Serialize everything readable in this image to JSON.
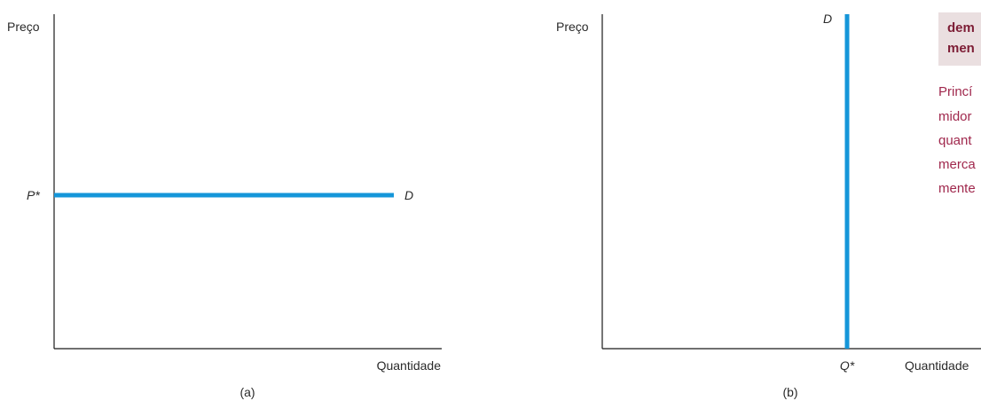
{
  "chart_data": [
    {
      "type": "line",
      "panel_label": "(a)",
      "ylabel": "Preço",
      "xlabel": "Quantidade",
      "tick_label_y": "P*",
      "series": [
        {
          "name": "D",
          "description": "perfectly elastic demand (horizontal line at P*)"
        }
      ],
      "grid": false
    },
    {
      "type": "line",
      "panel_label": "(b)",
      "ylabel": "Preço",
      "xlabel": "Quantidade",
      "tick_label_x": "Q*",
      "series": [
        {
          "name": "D",
          "description": "perfectly inelastic demand (vertical line at Q*)"
        }
      ],
      "grid": false
    }
  ],
  "sidebar": {
    "title_lines": [
      "dem",
      "men"
    ],
    "text_lines": [
      "Princí",
      "midor",
      "quant",
      "merca",
      "mente"
    ]
  },
  "colors": {
    "curve": "#1596d9",
    "sidebar_bg": "#eadfe0",
    "sidebar_title": "#7d1d35",
    "sidebar_text": "#a0284d"
  }
}
